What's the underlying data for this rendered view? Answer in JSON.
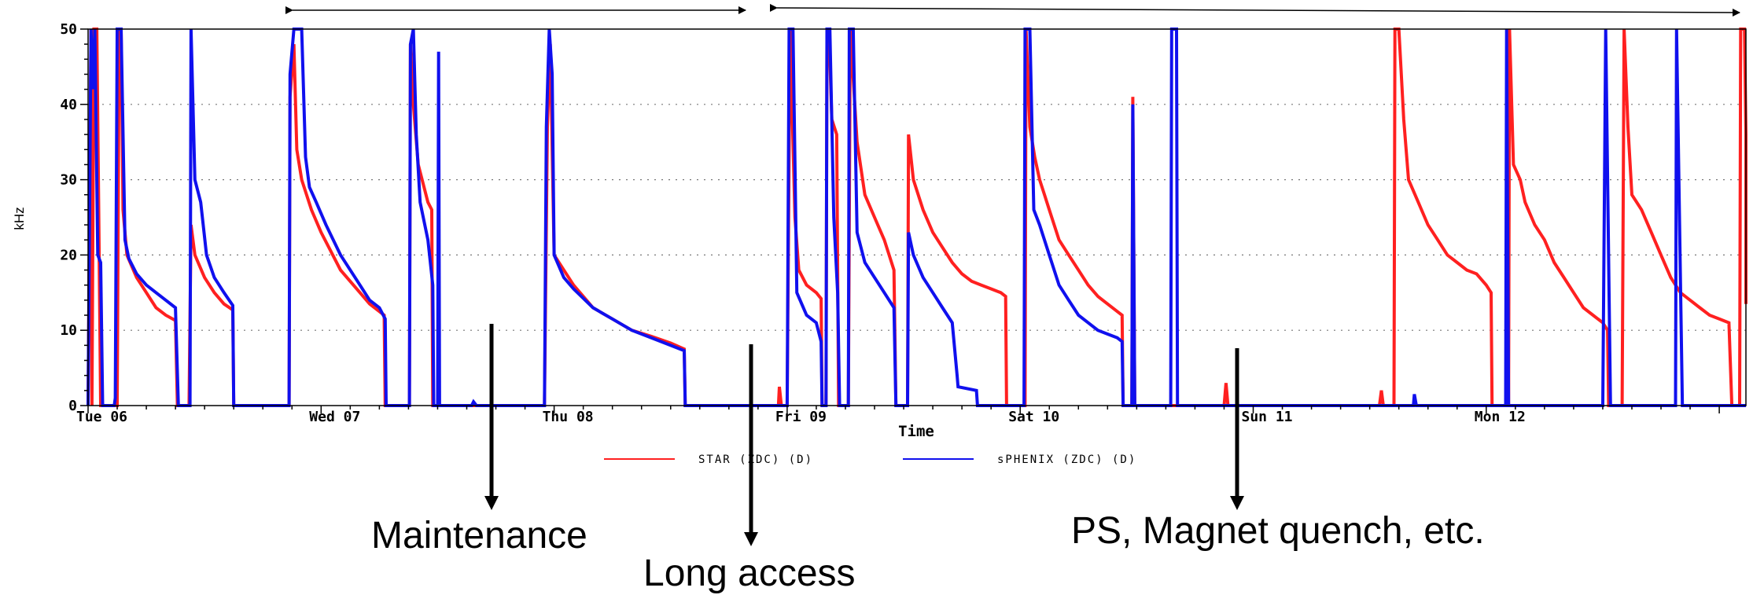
{
  "chart_data": {
    "type": "line",
    "title": "",
    "xlabel": "Time",
    "ylabel": "kHz",
    "ylim": [
      0,
      50
    ],
    "yticks": [
      0,
      10,
      20,
      30,
      40,
      50
    ],
    "x_unit": "hours since start of Tue 06",
    "xlim": [
      0,
      171.5
    ],
    "xtick_labels": [
      "Tue 06",
      "Wed 07",
      "Thu 08",
      "Fri 09",
      "Sat 10",
      "Sun 11",
      "Mon 12"
    ],
    "xtick_positions": [
      0,
      24,
      48,
      72,
      96,
      120,
      144
    ],
    "grid": "dotted horizontal",
    "legend": "bottom-center",
    "series": [
      {
        "name": "STAR (ZDC) (D)",
        "color": "#ff2020",
        "points": [
          [
            0,
            0
          ],
          [
            0.3,
            50
          ],
          [
            0.4,
            0
          ],
          [
            0.6,
            50
          ],
          [
            0.9,
            50
          ],
          [
            1.1,
            25
          ],
          [
            1.3,
            0
          ],
          [
            3.0,
            0
          ],
          [
            3.2,
            50
          ],
          [
            3.4,
            50
          ],
          [
            3.6,
            26
          ],
          [
            4.0,
            20
          ],
          [
            5,
            17
          ],
          [
            6,
            15
          ],
          [
            7,
            13
          ],
          [
            8,
            12
          ],
          [
            9,
            11.3
          ],
          [
            9.2,
            0
          ],
          [
            10.4,
            0
          ],
          [
            10.6,
            24
          ],
          [
            11.0,
            20
          ],
          [
            12,
            17
          ],
          [
            13,
            15
          ],
          [
            14,
            13.5
          ],
          [
            14.9,
            12.7
          ],
          [
            15.0,
            0
          ],
          [
            20.7,
            0
          ],
          [
            20.8,
            41
          ],
          [
            21.2,
            48
          ],
          [
            21.5,
            34
          ],
          [
            22,
            30
          ],
          [
            23,
            26
          ],
          [
            24,
            23
          ],
          [
            26,
            18
          ],
          [
            28,
            15
          ],
          [
            29,
            13.5
          ],
          [
            30,
            12.5
          ],
          [
            30.5,
            12
          ],
          [
            30.6,
            0
          ],
          [
            33.1,
            0
          ],
          [
            33.2,
            48
          ],
          [
            33.5,
            40
          ],
          [
            34,
            32
          ],
          [
            35,
            27
          ],
          [
            35.4,
            26
          ],
          [
            35.5,
            0
          ],
          [
            39,
            0
          ],
          [
            47.0,
            0
          ],
          [
            47.3,
            37
          ],
          [
            47.6,
            48
          ],
          [
            48.0,
            20
          ],
          [
            50,
            16
          ],
          [
            52,
            13
          ],
          [
            54,
            11.5
          ],
          [
            56,
            10
          ],
          [
            58,
            9.2
          ],
          [
            60,
            8.3
          ],
          [
            61.4,
            7.5
          ],
          [
            61.5,
            0
          ],
          [
            71.1,
            0
          ],
          [
            71.2,
            2.5
          ],
          [
            71.4,
            0
          ],
          [
            72,
            0
          ],
          [
            72.3,
            50
          ],
          [
            72.8,
            25
          ],
          [
            73.2,
            18
          ],
          [
            74,
            16
          ],
          [
            75,
            15
          ],
          [
            75.5,
            14.2
          ],
          [
            75.6,
            0
          ],
          [
            76.0,
            0
          ],
          [
            76.1,
            48
          ],
          [
            76.3,
            50
          ],
          [
            76.6,
            38
          ],
          [
            77.1,
            36
          ],
          [
            77.3,
            0
          ],
          [
            78.3,
            0
          ],
          [
            78.5,
            50
          ],
          [
            79.2,
            35
          ],
          [
            80,
            28
          ],
          [
            81,
            25
          ],
          [
            82,
            22
          ],
          [
            83,
            18
          ],
          [
            83.2,
            0
          ],
          [
            84.4,
            0
          ],
          [
            84.5,
            36
          ],
          [
            85,
            30
          ],
          [
            86,
            26
          ],
          [
            87,
            23
          ],
          [
            88,
            21
          ],
          [
            89,
            19
          ],
          [
            90,
            17.5
          ],
          [
            91,
            16.5
          ],
          [
            92,
            16
          ],
          [
            93,
            15.5
          ],
          [
            94,
            15
          ],
          [
            94.5,
            14.5
          ],
          [
            94.6,
            0
          ],
          [
            96.5,
            0
          ],
          [
            96.6,
            50
          ],
          [
            97,
            37
          ],
          [
            97.5,
            33
          ],
          [
            98,
            30
          ],
          [
            98.5,
            28
          ],
          [
            99,
            26
          ],
          [
            100,
            22
          ],
          [
            101,
            20
          ],
          [
            102,
            18
          ],
          [
            103,
            16
          ],
          [
            104,
            14.5
          ],
          [
            105,
            13.5
          ],
          [
            106,
            12.5
          ],
          [
            106.5,
            12
          ],
          [
            106.6,
            0
          ],
          [
            107.5,
            0
          ],
          [
            107.6,
            41
          ],
          [
            107.8,
            0
          ],
          [
            117,
            0
          ],
          [
            117.2,
            3
          ],
          [
            117.4,
            0
          ],
          [
            125,
            0
          ],
          [
            133,
            0
          ],
          [
            133.2,
            2
          ],
          [
            133.4,
            0
          ],
          [
            134.5,
            0
          ],
          [
            134.6,
            50
          ],
          [
            135,
            50
          ],
          [
            135.5,
            38
          ],
          [
            136,
            30
          ],
          [
            137,
            27
          ],
          [
            138,
            24
          ],
          [
            139,
            22
          ],
          [
            140,
            20
          ],
          [
            141,
            19
          ],
          [
            142,
            18
          ],
          [
            143,
            17.5
          ],
          [
            144,
            16
          ],
          [
            144.5,
            15
          ],
          [
            144.6,
            0
          ],
          [
            146.3,
            0
          ],
          [
            146.4,
            50
          ],
          [
            146.8,
            32
          ],
          [
            147.5,
            30
          ],
          [
            148,
            27
          ],
          [
            149,
            24
          ],
          [
            150,
            22
          ],
          [
            151,
            19
          ],
          [
            152,
            17
          ],
          [
            153,
            15
          ],
          [
            154,
            13
          ],
          [
            155,
            12
          ],
          [
            156,
            11
          ],
          [
            156.5,
            10
          ],
          [
            156.6,
            0
          ],
          [
            158,
            0
          ],
          [
            158.2,
            50
          ],
          [
            158.6,
            37
          ],
          [
            159,
            28
          ],
          [
            160,
            26
          ],
          [
            161,
            23
          ],
          [
            162,
            20
          ],
          [
            163,
            17
          ],
          [
            164,
            15
          ],
          [
            165,
            14
          ],
          [
            166,
            13
          ],
          [
            167,
            12
          ],
          [
            168,
            11.5
          ],
          [
            169,
            11
          ],
          [
            169.3,
            0
          ],
          [
            170.1,
            0
          ],
          [
            170.2,
            50
          ],
          [
            170.6,
            50
          ],
          [
            171,
            36
          ],
          [
            171.5,
            30
          ],
          [
            172,
            26
          ],
          [
            173,
            22
          ],
          [
            174,
            19
          ],
          [
            175,
            17
          ],
          [
            176,
            15.5
          ],
          [
            177,
            14.5
          ],
          [
            178,
            14
          ],
          [
            178.5,
            13.5
          ]
        ]
      },
      {
        "name": "sPHENIX (ZDC) (D)",
        "color": "#1010ee",
        "points": [
          [
            0,
            0
          ],
          [
            0.3,
            50
          ],
          [
            0.5,
            42
          ],
          [
            0.7,
            50
          ],
          [
            1.0,
            20
          ],
          [
            1.3,
            19
          ],
          [
            1.5,
            0
          ],
          [
            2.7,
            0
          ],
          [
            2.8,
            1
          ],
          [
            3.0,
            50
          ],
          [
            3.4,
            50
          ],
          [
            3.8,
            22
          ],
          [
            4.2,
            19.5
          ],
          [
            5,
            17.5
          ],
          [
            6,
            16
          ],
          [
            7,
            15
          ],
          [
            8,
            14
          ],
          [
            9,
            13
          ],
          [
            9.3,
            0
          ],
          [
            10.5,
            0
          ],
          [
            10.6,
            50
          ],
          [
            11.0,
            30
          ],
          [
            11.6,
            27
          ],
          [
            12.2,
            20
          ],
          [
            13,
            17
          ],
          [
            14,
            15
          ],
          [
            14.9,
            13.3
          ],
          [
            15.0,
            0
          ],
          [
            20.7,
            0
          ],
          [
            20.8,
            44
          ],
          [
            21.2,
            50
          ],
          [
            21.6,
            50
          ],
          [
            22,
            50
          ],
          [
            22.4,
            33
          ],
          [
            22.8,
            29
          ],
          [
            23.5,
            27
          ],
          [
            24.5,
            24
          ],
          [
            26,
            20
          ],
          [
            28,
            16
          ],
          [
            29,
            14
          ],
          [
            30,
            13
          ],
          [
            30.6,
            11.5
          ],
          [
            30.7,
            0
          ],
          [
            33.1,
            0
          ],
          [
            33.2,
            48
          ],
          [
            33.5,
            50
          ],
          [
            33.8,
            36
          ],
          [
            34.2,
            27
          ],
          [
            35,
            22
          ],
          [
            35.5,
            16
          ],
          [
            35.6,
            0
          ],
          [
            36.0,
            0
          ],
          [
            36.1,
            47
          ],
          [
            36.2,
            0
          ],
          [
            39.5,
            0
          ],
          [
            39.7,
            0.5
          ],
          [
            40,
            0
          ],
          [
            47.0,
            0
          ],
          [
            47.2,
            37
          ],
          [
            47.5,
            50
          ],
          [
            47.8,
            44
          ],
          [
            48.0,
            20
          ],
          [
            49,
            17
          ],
          [
            50,
            15.5
          ],
          [
            52,
            13
          ],
          [
            54,
            11.5
          ],
          [
            56,
            10
          ],
          [
            58,
            9
          ],
          [
            60,
            8
          ],
          [
            61.4,
            7.3
          ],
          [
            61.5,
            0
          ],
          [
            72,
            0
          ],
          [
            72.2,
            50
          ],
          [
            72.6,
            50
          ],
          [
            73.0,
            15
          ],
          [
            74,
            12
          ],
          [
            75,
            11
          ],
          [
            75.5,
            8.5
          ],
          [
            75.6,
            0
          ],
          [
            76.0,
            0
          ],
          [
            76.1,
            50
          ],
          [
            76.4,
            50
          ],
          [
            76.8,
            25
          ],
          [
            77.2,
            15
          ],
          [
            77.4,
            0
          ],
          [
            78.3,
            0
          ],
          [
            78.4,
            50
          ],
          [
            78.8,
            50
          ],
          [
            79.2,
            23
          ],
          [
            80,
            19
          ],
          [
            81,
            17
          ],
          [
            82,
            15
          ],
          [
            83,
            13
          ],
          [
            83.2,
            0
          ],
          [
            84.4,
            0
          ],
          [
            84.5,
            23
          ],
          [
            85,
            20
          ],
          [
            86,
            17
          ],
          [
            87,
            15
          ],
          [
            88,
            13
          ],
          [
            89,
            11
          ],
          [
            89.5,
            4
          ],
          [
            89.6,
            2.5
          ],
          [
            91.5,
            2
          ],
          [
            91.6,
            0
          ],
          [
            96.4,
            0
          ],
          [
            96.5,
            50
          ],
          [
            97,
            50
          ],
          [
            97.4,
            26
          ],
          [
            98,
            24
          ],
          [
            99,
            20
          ],
          [
            100,
            16
          ],
          [
            101,
            14
          ],
          [
            102,
            12
          ],
          [
            103,
            11
          ],
          [
            104,
            10
          ],
          [
            105,
            9.5
          ],
          [
            106,
            9
          ],
          [
            106.5,
            8.5
          ],
          [
            106.6,
            0
          ],
          [
            107.5,
            0
          ],
          [
            107.6,
            40
          ],
          [
            107.8,
            0
          ],
          [
            111.5,
            0
          ],
          [
            111.6,
            50
          ],
          [
            112.1,
            50
          ],
          [
            112.2,
            0
          ],
          [
            136.5,
            0
          ],
          [
            136.6,
            1.5
          ],
          [
            136.8,
            0
          ],
          [
            146,
            0
          ],
          [
            146.1,
            50
          ],
          [
            146.3,
            0
          ],
          [
            156,
            0
          ],
          [
            156.3,
            50
          ],
          [
            156.8,
            0
          ],
          [
            163.5,
            0
          ],
          [
            163.6,
            50
          ],
          [
            164.2,
            0
          ],
          [
            170,
            0
          ],
          [
            171.5,
            0
          ]
        ]
      }
    ]
  },
  "legend": {
    "star_label": "STAR (ZDC) (D)",
    "sphenix_label": "sPHENIX (ZDC) (D)"
  },
  "annotations": {
    "maintenance": "Maintenance",
    "long_access": "Long access",
    "ps_quench": "PS, Magnet quench, etc."
  }
}
